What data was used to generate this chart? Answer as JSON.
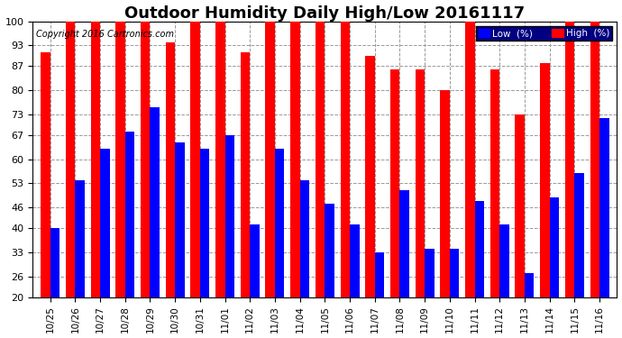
{
  "title": "Outdoor Humidity Daily High/Low 20161117",
  "copyright": "Copyright 2016 Cartronics.com",
  "legend_low": "Low  (%)",
  "legend_high": "High  (%)",
  "categories": [
    "10/25",
    "10/26",
    "10/27",
    "10/28",
    "10/29",
    "10/30",
    "10/31",
    "11/01",
    "11/02",
    "11/03",
    "11/04",
    "11/05",
    "11/06",
    "11/07",
    "11/08",
    "11/09",
    "11/10",
    "11/11",
    "11/12",
    "11/13",
    "11/14",
    "11/15",
    "11/16"
  ],
  "high_values": [
    91,
    100,
    100,
    100,
    100,
    94,
    100,
    100,
    91,
    100,
    100,
    100,
    100,
    90,
    86,
    86,
    80,
    100,
    86,
    73,
    88,
    100,
    100
  ],
  "low_values": [
    40,
    54,
    63,
    68,
    75,
    65,
    63,
    67,
    41,
    63,
    54,
    47,
    41,
    33,
    51,
    34,
    34,
    48,
    41,
    27,
    49,
    56,
    72
  ],
  "bar_color_high": "#ff0000",
  "bar_color_low": "#0000ff",
  "bg_color": "#ffffff",
  "grid_color": "#999999",
  "ylim_min": 20,
  "ylim_max": 100,
  "yticks": [
    20,
    26,
    33,
    40,
    46,
    53,
    60,
    67,
    73,
    80,
    87,
    93,
    100
  ],
  "title_fontsize": 13,
  "copyright_fontsize": 7,
  "bar_width": 0.38,
  "figwidth": 6.9,
  "figheight": 3.75,
  "dpi": 100
}
